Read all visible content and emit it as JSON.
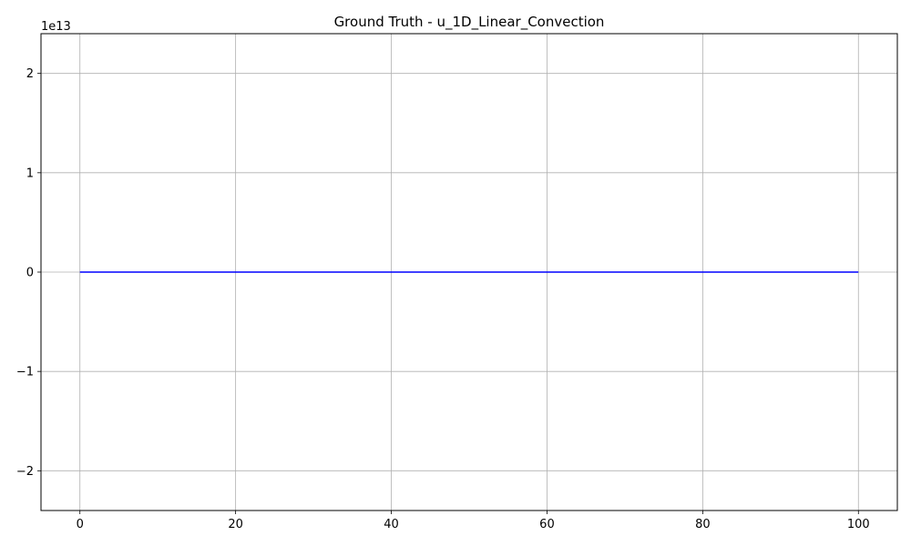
{
  "chart_data": {
    "type": "line",
    "title": "Ground Truth - u_1D_Linear_Convection",
    "xlabel": "",
    "ylabel": "",
    "y_offset_label": "1e13",
    "xlim": [
      -5,
      105
    ],
    "ylim": [
      -2.4,
      2.4
    ],
    "x_ticks": [
      0,
      20,
      40,
      60,
      80,
      100
    ],
    "x_tick_labels": [
      "0",
      "20",
      "40",
      "60",
      "80",
      "100"
    ],
    "y_ticks": [
      -2,
      -1,
      0,
      1,
      2
    ],
    "y_tick_labels": [
      "−2",
      "−1",
      "0",
      "1",
      "2"
    ],
    "grid": true,
    "series": [
      {
        "color": "#0000ff",
        "x": [
          0,
          10,
          20,
          30,
          40,
          50,
          60,
          70,
          80,
          90,
          100
        ],
        "y": [
          0,
          0,
          0,
          0,
          0,
          0,
          0,
          0,
          0,
          0,
          0
        ]
      }
    ]
  }
}
